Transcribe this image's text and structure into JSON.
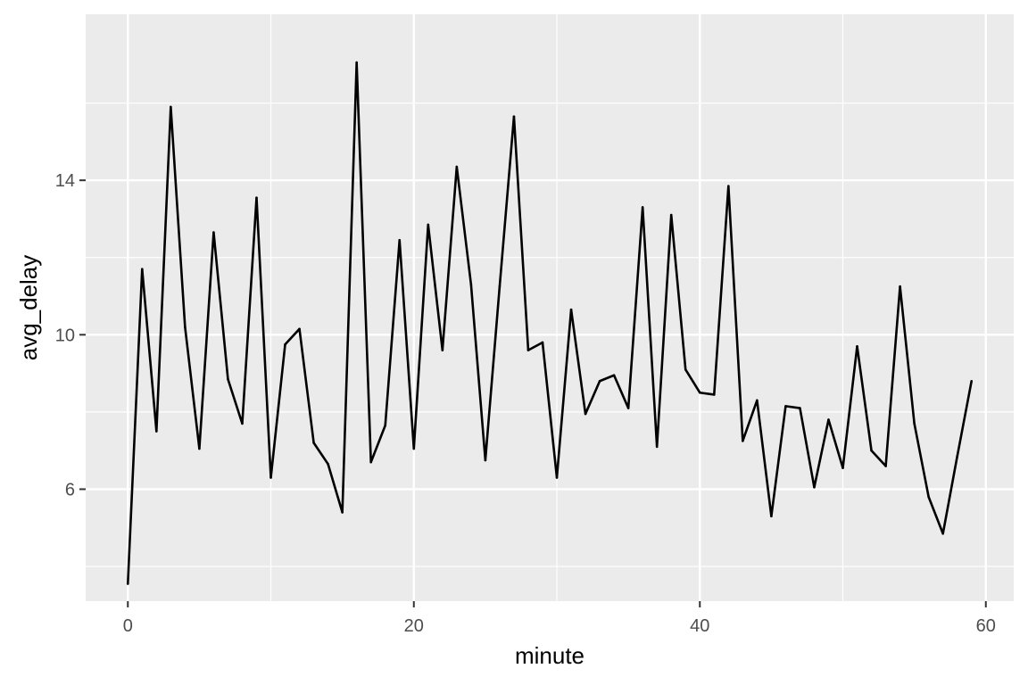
{
  "chart_data": {
    "type": "line",
    "title": "",
    "xlabel": "minute",
    "ylabel": "avg_delay",
    "xlim": [
      -2.95,
      61.95
    ],
    "ylim": [
      3.1,
      18.3
    ],
    "x_ticks": [
      0,
      20,
      40,
      60
    ],
    "y_ticks": [
      6,
      10,
      14
    ],
    "grid": true,
    "background": "#ebebeb",
    "grid_color": "#ffffff",
    "line_color": "#000000",
    "series": [
      {
        "x": [
          0,
          1,
          2,
          3,
          4,
          5,
          6,
          7,
          8,
          9,
          10,
          11,
          12,
          13,
          14,
          15,
          16,
          17,
          18,
          19,
          20,
          21,
          22,
          23,
          24,
          25,
          26,
          27,
          28,
          29,
          30,
          31,
          32,
          33,
          34,
          35,
          36,
          37,
          38,
          39,
          40,
          41,
          42,
          43,
          44,
          45,
          46,
          47,
          48,
          49,
          50,
          51,
          52,
          53,
          54,
          55,
          56,
          57,
          58,
          59
        ],
        "values": [
          3.55,
          11.7,
          7.5,
          15.9,
          10.2,
          7.05,
          12.65,
          8.85,
          7.7,
          13.55,
          6.3,
          9.75,
          10.15,
          7.2,
          6.65,
          5.4,
          17.05,
          6.7,
          7.65,
          12.45,
          7.05,
          12.85,
          9.6,
          14.35,
          11.3,
          6.75,
          11.25,
          15.65,
          9.6,
          9.8,
          6.3,
          10.65,
          7.95,
          8.8,
          8.95,
          8.1,
          13.3,
          7.1,
          13.1,
          9.1,
          8.5,
          8.45,
          13.85,
          7.25,
          8.3,
          5.3,
          8.15,
          8.1,
          6.05,
          7.8,
          6.55,
          9.7,
          7.0,
          6.6,
          11.25,
          7.7,
          5.8,
          4.85,
          6.85,
          8.8
        ]
      }
    ]
  }
}
